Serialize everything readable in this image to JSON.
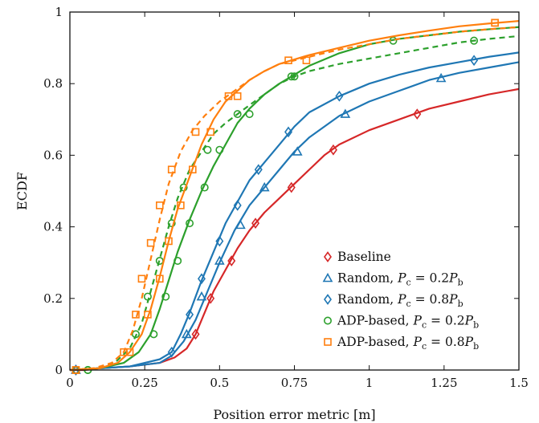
{
  "chart_data": {
    "type": "line",
    "xlabel": "Position error metric [m]",
    "ylabel": "ECDF",
    "xlim": [
      0,
      1.5
    ],
    "ylim": [
      0,
      1
    ],
    "xticks": [
      0,
      0.25,
      0.5,
      0.75,
      1,
      1.25,
      1.5
    ],
    "xtick_labels": [
      "0",
      "0.25",
      "0.5",
      "0.75",
      "1",
      "1.25",
      "1.5"
    ],
    "yticks": [
      0,
      0.2,
      0.4,
      0.6,
      0.8,
      1
    ],
    "ytick_labels": [
      "0",
      "0.2",
      "0.4",
      "0.6",
      "0.8",
      "1"
    ],
    "legend_position": "bottom-right",
    "series": [
      {
        "name": "Baseline",
        "legend_parts": [
          "Baseline"
        ],
        "color": "#d62728",
        "marker": "diamond",
        "dashed": false,
        "points": [
          [
            0,
            0
          ],
          [
            0.05,
            0
          ],
          [
            0.1,
            0.005
          ],
          [
            0.2,
            0.01
          ],
          [
            0.3,
            0.02
          ],
          [
            0.35,
            0.035
          ],
          [
            0.39,
            0.06
          ],
          [
            0.42,
            0.1
          ],
          [
            0.45,
            0.16
          ],
          [
            0.48,
            0.22
          ],
          [
            0.52,
            0.28
          ],
          [
            0.56,
            0.34
          ],
          [
            0.6,
            0.39
          ],
          [
            0.65,
            0.44
          ],
          [
            0.7,
            0.48
          ],
          [
            0.75,
            0.52
          ],
          [
            0.8,
            0.56
          ],
          [
            0.85,
            0.6
          ],
          [
            0.9,
            0.63
          ],
          [
            1.0,
            0.67
          ],
          [
            1.1,
            0.7
          ],
          [
            1.2,
            0.73
          ],
          [
            1.3,
            0.75
          ],
          [
            1.4,
            0.77
          ],
          [
            1.5,
            0.785
          ]
        ],
        "markers": [
          [
            0.02,
            0
          ],
          [
            0.42,
            0.1
          ],
          [
            0.47,
            0.2
          ],
          [
            0.54,
            0.305
          ],
          [
            0.62,
            0.41
          ],
          [
            0.74,
            0.51
          ],
          [
            0.88,
            0.615
          ],
          [
            1.16,
            0.715
          ]
        ]
      },
      {
        "name": "Random, Pc = 0.2Pb",
        "legend_parts": [
          "Random, ",
          "P",
          "c",
          " = 0.2",
          "P",
          "b"
        ],
        "color": "#1f77b4",
        "marker": "triangle",
        "dashed": false,
        "points": [
          [
            0,
            0
          ],
          [
            0.1,
            0.005
          ],
          [
            0.2,
            0.01
          ],
          [
            0.3,
            0.02
          ],
          [
            0.34,
            0.04
          ],
          [
            0.38,
            0.08
          ],
          [
            0.42,
            0.14
          ],
          [
            0.46,
            0.22
          ],
          [
            0.5,
            0.3
          ],
          [
            0.55,
            0.39
          ],
          [
            0.6,
            0.46
          ],
          [
            0.65,
            0.51
          ],
          [
            0.7,
            0.56
          ],
          [
            0.75,
            0.61
          ],
          [
            0.8,
            0.65
          ],
          [
            0.9,
            0.71
          ],
          [
            1.0,
            0.75
          ],
          [
            1.1,
            0.78
          ],
          [
            1.2,
            0.81
          ],
          [
            1.3,
            0.83
          ],
          [
            1.4,
            0.845
          ],
          [
            1.5,
            0.86
          ]
        ],
        "markers": [
          [
            0.02,
            0
          ],
          [
            0.39,
            0.1
          ],
          [
            0.44,
            0.205
          ],
          [
            0.5,
            0.305
          ],
          [
            0.57,
            0.405
          ],
          [
            0.65,
            0.51
          ],
          [
            0.76,
            0.61
          ],
          [
            0.92,
            0.715
          ],
          [
            1.24,
            0.815
          ]
        ]
      },
      {
        "name": "Random, Pc = 0.8Pb",
        "legend_parts": [
          "Random, ",
          "P",
          "c",
          " = 0.8",
          "P",
          "b"
        ],
        "color": "#1f77b4",
        "marker": "diamond",
        "dashed": false,
        "points": [
          [
            0,
            0
          ],
          [
            0.1,
            0.005
          ],
          [
            0.2,
            0.01
          ],
          [
            0.3,
            0.03
          ],
          [
            0.34,
            0.05
          ],
          [
            0.37,
            0.1
          ],
          [
            0.4,
            0.16
          ],
          [
            0.44,
            0.25
          ],
          [
            0.48,
            0.33
          ],
          [
            0.52,
            0.41
          ],
          [
            0.56,
            0.47
          ],
          [
            0.6,
            0.53
          ],
          [
            0.65,
            0.58
          ],
          [
            0.7,
            0.63
          ],
          [
            0.75,
            0.68
          ],
          [
            0.8,
            0.72
          ],
          [
            0.9,
            0.765
          ],
          [
            1.0,
            0.8
          ],
          [
            1.1,
            0.825
          ],
          [
            1.2,
            0.845
          ],
          [
            1.3,
            0.86
          ],
          [
            1.4,
            0.875
          ],
          [
            1.5,
            0.887
          ]
        ],
        "markers": [
          [
            0.02,
            0
          ],
          [
            0.34,
            0.05
          ],
          [
            0.4,
            0.155
          ],
          [
            0.44,
            0.255
          ],
          [
            0.5,
            0.36
          ],
          [
            0.56,
            0.46
          ],
          [
            0.63,
            0.56
          ],
          [
            0.73,
            0.665
          ],
          [
            0.9,
            0.765
          ],
          [
            1.35,
            0.865
          ]
        ]
      },
      {
        "name": "ADP-based, Pc = 0.2Pb",
        "legend_parts": [
          "ADP-based, ",
          "P",
          "c",
          " = 0.2",
          "P",
          "b"
        ],
        "color": "#2ca02c",
        "marker": "circle",
        "dashed": false,
        "points": [
          [
            0,
            0
          ],
          [
            0.1,
            0.005
          ],
          [
            0.18,
            0.02
          ],
          [
            0.23,
            0.05
          ],
          [
            0.27,
            0.1
          ],
          [
            0.3,
            0.17
          ],
          [
            0.33,
            0.25
          ],
          [
            0.36,
            0.33
          ],
          [
            0.4,
            0.42
          ],
          [
            0.44,
            0.5
          ],
          [
            0.48,
            0.57
          ],
          [
            0.52,
            0.63
          ],
          [
            0.56,
            0.69
          ],
          [
            0.6,
            0.73
          ],
          [
            0.65,
            0.77
          ],
          [
            0.7,
            0.8
          ],
          [
            0.75,
            0.825
          ],
          [
            0.8,
            0.85
          ],
          [
            0.9,
            0.885
          ],
          [
            1.0,
            0.91
          ],
          [
            1.1,
            0.925
          ],
          [
            1.2,
            0.935
          ],
          [
            1.3,
            0.945
          ],
          [
            1.4,
            0.952
          ],
          [
            1.5,
            0.958
          ]
        ],
        "markers": [
          [
            0.02,
            0
          ],
          [
            0.06,
            0
          ],
          [
            0.28,
            0.1
          ],
          [
            0.32,
            0.205
          ],
          [
            0.36,
            0.305
          ],
          [
            0.4,
            0.41
          ],
          [
            0.45,
            0.51
          ],
          [
            0.5,
            0.615
          ],
          [
            0.6,
            0.715
          ],
          [
            0.75,
            0.82
          ],
          [
            1.08,
            0.92
          ]
        ]
      },
      {
        "name": "ADP-based, Pc = 0.2Pb (dashed)",
        "legend_parts": [],
        "color": "#2ca02c",
        "marker": "circle",
        "dashed": true,
        "points": [
          [
            0,
            0
          ],
          [
            0.1,
            0.005
          ],
          [
            0.15,
            0.02
          ],
          [
            0.2,
            0.06
          ],
          [
            0.24,
            0.13
          ],
          [
            0.27,
            0.22
          ],
          [
            0.3,
            0.31
          ],
          [
            0.33,
            0.4
          ],
          [
            0.36,
            0.48
          ],
          [
            0.4,
            0.56
          ],
          [
            0.44,
            0.61
          ],
          [
            0.48,
            0.66
          ],
          [
            0.52,
            0.69
          ],
          [
            0.56,
            0.715
          ],
          [
            0.6,
            0.74
          ],
          [
            0.65,
            0.77
          ],
          [
            0.7,
            0.8
          ],
          [
            0.75,
            0.82
          ],
          [
            0.8,
            0.835
          ],
          [
            0.9,
            0.855
          ],
          [
            1.0,
            0.87
          ],
          [
            1.1,
            0.885
          ],
          [
            1.2,
            0.9
          ],
          [
            1.3,
            0.915
          ],
          [
            1.4,
            0.925
          ],
          [
            1.5,
            0.933
          ]
        ],
        "markers": [
          [
            0.02,
            0
          ],
          [
            0.06,
            0
          ],
          [
            0.22,
            0.1
          ],
          [
            0.26,
            0.205
          ],
          [
            0.3,
            0.305
          ],
          [
            0.34,
            0.41
          ],
          [
            0.38,
            0.51
          ],
          [
            0.46,
            0.615
          ],
          [
            0.56,
            0.715
          ],
          [
            0.74,
            0.82
          ],
          [
            1.35,
            0.92
          ]
        ]
      },
      {
        "name": "ADP-based, Pc = 0.8Pb",
        "legend_parts": [
          "ADP-based, ",
          "P",
          "c",
          " = 0.8",
          "P",
          "b"
        ],
        "color": "#ff7f0e",
        "marker": "square",
        "dashed": false,
        "points": [
          [
            0,
            0
          ],
          [
            0.1,
            0.005
          ],
          [
            0.16,
            0.02
          ],
          [
            0.2,
            0.05
          ],
          [
            0.24,
            0.1
          ],
          [
            0.27,
            0.17
          ],
          [
            0.3,
            0.26
          ],
          [
            0.33,
            0.36
          ],
          [
            0.36,
            0.45
          ],
          [
            0.4,
            0.54
          ],
          [
            0.44,
            0.63
          ],
          [
            0.48,
            0.7
          ],
          [
            0.52,
            0.75
          ],
          [
            0.56,
            0.78
          ],
          [
            0.6,
            0.81
          ],
          [
            0.65,
            0.835
          ],
          [
            0.7,
            0.855
          ],
          [
            0.8,
            0.88
          ],
          [
            0.9,
            0.9
          ],
          [
            1.0,
            0.92
          ],
          [
            1.1,
            0.935
          ],
          [
            1.2,
            0.948
          ],
          [
            1.3,
            0.96
          ],
          [
            1.4,
            0.968
          ],
          [
            1.5,
            0.975
          ]
        ],
        "markers": [
          [
            0.02,
            0
          ],
          [
            0.2,
            0.05
          ],
          [
            0.26,
            0.155
          ],
          [
            0.3,
            0.255
          ],
          [
            0.33,
            0.36
          ],
          [
            0.37,
            0.46
          ],
          [
            0.41,
            0.56
          ],
          [
            0.47,
            0.665
          ],
          [
            0.56,
            0.765
          ],
          [
            0.73,
            0.865
          ],
          [
            1.42,
            0.97
          ]
        ]
      },
      {
        "name": "ADP-based, Pc = 0.8Pb (dashed)",
        "legend_parts": [],
        "color": "#ff7f0e",
        "marker": "square",
        "dashed": true,
        "points": [
          [
            0,
            0
          ],
          [
            0.08,
            0.005
          ],
          [
            0.14,
            0.02
          ],
          [
            0.18,
            0.05
          ],
          [
            0.21,
            0.11
          ],
          [
            0.24,
            0.2
          ],
          [
            0.27,
            0.31
          ],
          [
            0.3,
            0.42
          ],
          [
            0.33,
            0.52
          ],
          [
            0.37,
            0.61
          ],
          [
            0.41,
            0.67
          ],
          [
            0.45,
            0.71
          ],
          [
            0.5,
            0.75
          ],
          [
            0.55,
            0.78
          ],
          [
            0.6,
            0.81
          ],
          [
            0.65,
            0.835
          ],
          [
            0.7,
            0.855
          ],
          [
            0.8,
            0.875
          ],
          [
            0.9,
            0.895
          ],
          [
            1.0,
            0.91
          ],
          [
            1.1,
            0.925
          ],
          [
            1.2,
            0.935
          ],
          [
            1.3,
            0.945
          ],
          [
            1.4,
            0.952
          ],
          [
            1.5,
            0.958
          ]
        ],
        "markers": [
          [
            0.02,
            0
          ],
          [
            0.18,
            0.05
          ],
          [
            0.22,
            0.155
          ],
          [
            0.24,
            0.255
          ],
          [
            0.27,
            0.355
          ],
          [
            0.3,
            0.46
          ],
          [
            0.34,
            0.56
          ],
          [
            0.42,
            0.665
          ],
          [
            0.53,
            0.765
          ],
          [
            0.79,
            0.865
          ],
          [
            1.42,
            0.97
          ]
        ]
      }
    ]
  }
}
